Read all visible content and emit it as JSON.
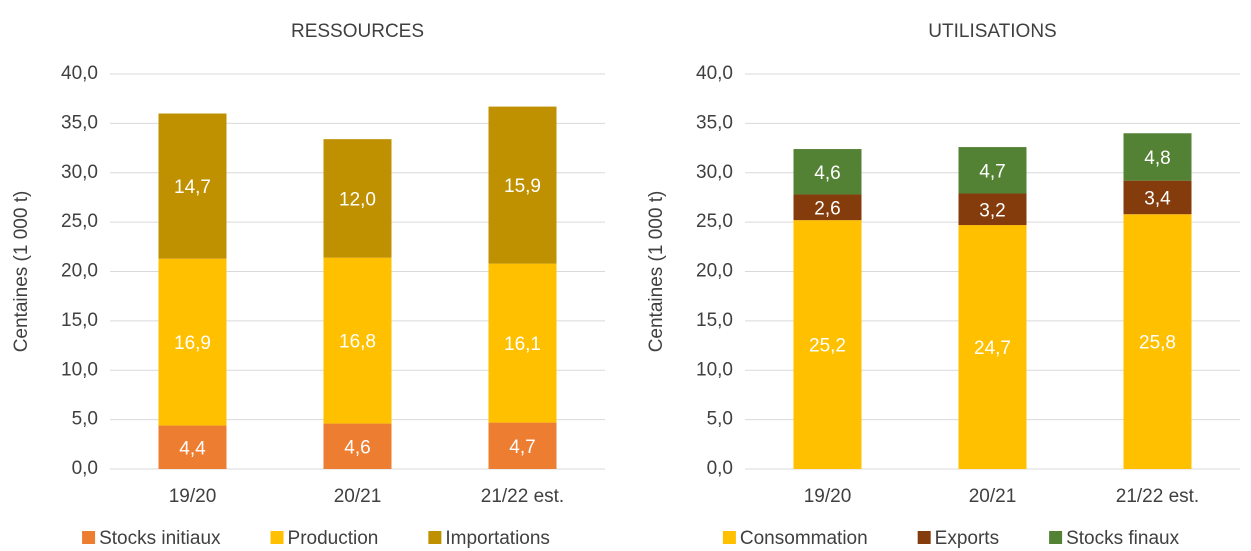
{
  "chart_data": [
    {
      "type": "bar",
      "stacked": true,
      "title": "RESSOURCES",
      "y_label": "Centaines (1 000 t)",
      "categories": [
        "19/20",
        "20/21",
        "21/22 est."
      ],
      "series": [
        {
          "name": "Stocks initiaux",
          "color": "#ED7D31",
          "values": [
            4.4,
            4.6,
            4.7
          ],
          "value_labels": [
            "4,4",
            "4,6",
            "4,7"
          ]
        },
        {
          "name": "Production",
          "color": "#FFC000",
          "values": [
            16.9,
            16.8,
            16.1
          ],
          "value_labels": [
            "16,9",
            "16,8",
            "16,1"
          ]
        },
        {
          "name": "Importations",
          "color": "#BF9000",
          "values": [
            14.7,
            12.0,
            15.9
          ],
          "value_labels": [
            "14,7",
            "12,0",
            "15,9"
          ]
        }
      ],
      "ylim": [
        0,
        40
      ],
      "yticks": [
        {
          "value": 0,
          "label": "0,0"
        },
        {
          "value": 5,
          "label": "5,0"
        },
        {
          "value": 10,
          "label": "10,0"
        },
        {
          "value": 15,
          "label": "15,0"
        },
        {
          "value": 20,
          "label": "20,0"
        },
        {
          "value": 25,
          "label": "25,0"
        },
        {
          "value": 30,
          "label": "30,0"
        },
        {
          "value": 35,
          "label": "35,0"
        },
        {
          "value": 40,
          "label": "40,0"
        }
      ],
      "grid": true,
      "legend": "bottom"
    },
    {
      "type": "bar",
      "stacked": true,
      "title": "UTILISATIONS",
      "y_label": "Centaines (1 000 t)",
      "categories": [
        "19/20",
        "20/21",
        "21/22 est."
      ],
      "series": [
        {
          "name": "Consommation",
          "color": "#FFC000",
          "values": [
            25.2,
            24.7,
            25.8
          ],
          "value_labels": [
            "25,2",
            "24,7",
            "25,8"
          ]
        },
        {
          "name": "Exports",
          "color": "#843C0C",
          "values": [
            2.6,
            3.2,
            3.4
          ],
          "value_labels": [
            "2,6",
            "3,2",
            "3,4"
          ]
        },
        {
          "name": "Stocks finaux",
          "color": "#548235",
          "values": [
            4.6,
            4.7,
            4.8
          ],
          "value_labels": [
            "4,6",
            "4,7",
            "4,8"
          ]
        }
      ],
      "ylim": [
        0,
        40
      ],
      "yticks": [
        {
          "value": 0,
          "label": "0,0"
        },
        {
          "value": 5,
          "label": "5,0"
        },
        {
          "value": 10,
          "label": "10,0"
        },
        {
          "value": 15,
          "label": "15,0"
        },
        {
          "value": 20,
          "label": "20,0"
        },
        {
          "value": 25,
          "label": "25,0"
        },
        {
          "value": 30,
          "label": "30,0"
        },
        {
          "value": 35,
          "label": "35,0"
        },
        {
          "value": 40,
          "label": "40,0"
        }
      ],
      "grid": true,
      "legend": "bottom"
    }
  ]
}
